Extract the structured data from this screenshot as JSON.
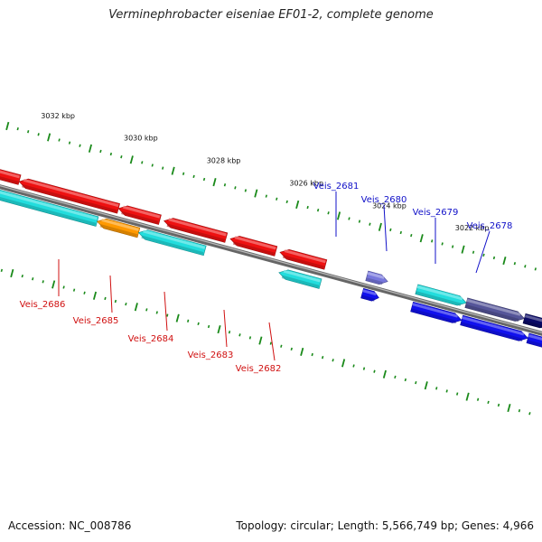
{
  "title": "Verminephrobacter eiseniae EF01-2, complete genome",
  "footer": {
    "accession": "Accession: NC_008786",
    "summary": "Topology: circular; Length: 5,566,749 bp; Genes: 4,966"
  },
  "colors": {
    "backbone": "#888888",
    "tick": "#1a8a1a",
    "forward_label": "#1010c8",
    "reverse_label": "#d01010",
    "red": "#ee1111",
    "cyan": "#22dddd",
    "orange": "#ff9900",
    "blue": "#1111ee",
    "navy": "#0a0a66",
    "lavender": "#7777dd",
    "gray": "#bbbbbb"
  },
  "kbp_labels": [
    {
      "text": "3032 kbp",
      "pos_kbp": 3032
    },
    {
      "text": "3030 kbp",
      "pos_kbp": 3030
    },
    {
      "text": "3028 kbp",
      "pos_kbp": 3028
    },
    {
      "text": "3026 kbp",
      "pos_kbp": 3026
    },
    {
      "text": "3024 kbp",
      "pos_kbp": 3024
    },
    {
      "text": "3022 kbp",
      "pos_kbp": 3022
    }
  ],
  "gene_labels": [
    {
      "text": "Veis_2681",
      "strand": "forward"
    },
    {
      "text": "Veis_2680",
      "strand": "forward"
    },
    {
      "text": "Veis_2679",
      "strand": "forward"
    },
    {
      "text": "Veis_2678",
      "strand": "forward"
    },
    {
      "text": "Veis_2686",
      "strand": "reverse"
    },
    {
      "text": "Veis_2685",
      "strand": "reverse"
    },
    {
      "text": "Veis_2684",
      "strand": "reverse"
    },
    {
      "text": "Veis_2683",
      "strand": "reverse"
    },
    {
      "text": "Veis_2682",
      "strand": "reverse"
    }
  ]
}
